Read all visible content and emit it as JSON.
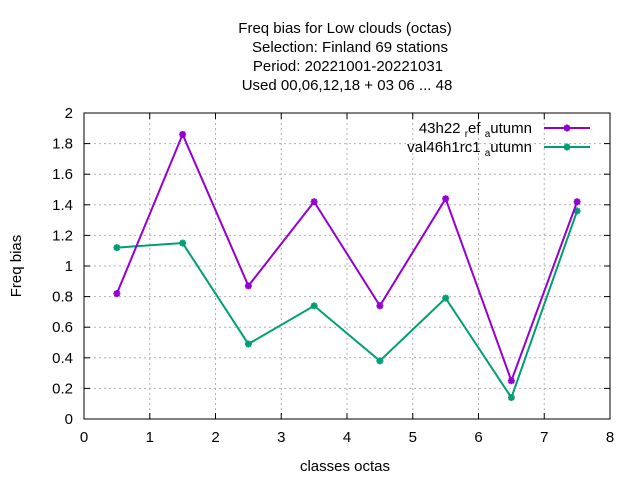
{
  "chart_data": {
    "type": "line",
    "title_lines": [
      "Freq bias  for Low clouds (octas)",
      "Selection: Finland     69 stations",
      "Period: 20221001-20221031",
      "Used  00,06,12,18  + 03 06 ... 48"
    ],
    "xlabel": "classes octas",
    "ylabel": "Freq bias",
    "xlim": [
      0,
      8
    ],
    "ylim": [
      0,
      2
    ],
    "x_ticks": [
      "0",
      "1",
      "2",
      "3",
      "4",
      "5",
      "6",
      "7",
      "8"
    ],
    "y_ticks": [
      "0",
      "0.2",
      "0.4",
      "0.6",
      "0.8",
      "1",
      "1.2",
      "1.4",
      "1.6",
      "1.8",
      "2"
    ],
    "grid": true,
    "legend_position": "top-right",
    "x": [
      0.5,
      1.5,
      2.5,
      3.5,
      4.5,
      5.5,
      6.5,
      7.5
    ],
    "series": [
      {
        "name": "43h22 ref autumn",
        "legend_parts": [
          {
            "text": "43h22 ",
            "sub": false
          },
          {
            "text": "r",
            "sub": true
          },
          {
            "text": "ef ",
            "sub": false
          },
          {
            "text": "a",
            "sub": true
          },
          {
            "text": "utumn",
            "sub": false
          }
        ],
        "color": "#9400d3",
        "values": [
          0.82,
          1.86,
          0.87,
          1.42,
          0.74,
          1.44,
          0.25,
          1.42
        ]
      },
      {
        "name": "val46h1rc1 autumn",
        "legend_parts": [
          {
            "text": "val46h1rc1 ",
            "sub": false
          },
          {
            "text": "a",
            "sub": true
          },
          {
            "text": "utumn",
            "sub": false
          }
        ],
        "color": "#009e73",
        "values": [
          1.12,
          1.15,
          0.49,
          0.74,
          0.38,
          0.79,
          0.14,
          1.36
        ]
      }
    ]
  }
}
